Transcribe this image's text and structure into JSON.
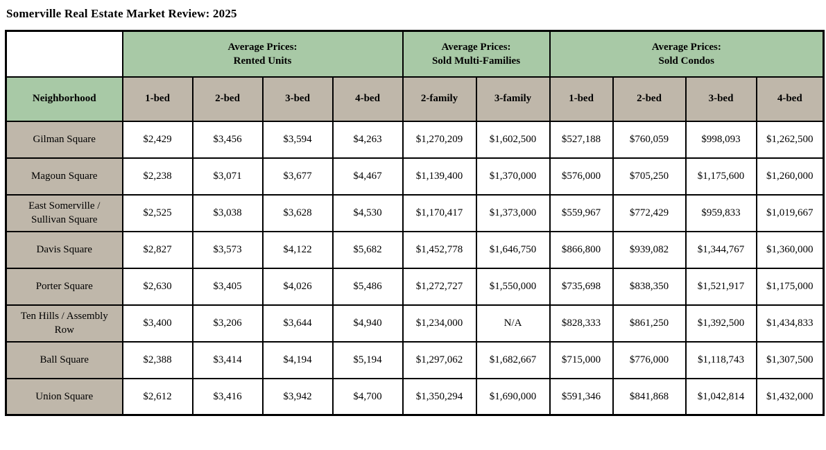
{
  "title": "Somerville Real Estate Market Review: 2025",
  "table": {
    "col_groups": [
      {
        "line1": "Average Prices:",
        "line2": "Rented Units",
        "span": 4
      },
      {
        "line1": "Average Prices:",
        "line2": "Sold Multi-Families",
        "span": 2
      },
      {
        "line1": "Average Prices:",
        "line2": "Sold Condos",
        "span": 4
      }
    ],
    "row_header": "Neighborhood",
    "sub_headers": [
      "1-bed",
      "2-bed",
      "3-bed",
      "4-bed",
      "2-family",
      "3-family",
      "1-bed",
      "2-bed",
      "3-bed",
      "4-bed"
    ],
    "rows": [
      {
        "neighborhood": "Gilman Square",
        "values": [
          "$2,429",
          "$3,456",
          "$3,594",
          "$4,263",
          "$1,270,209",
          "$1,602,500",
          "$527,188",
          "$760,059",
          "$998,093",
          "$1,262,500"
        ]
      },
      {
        "neighborhood": "Magoun Square",
        "values": [
          "$2,238",
          "$3,071",
          "$3,677",
          "$4,467",
          "$1,139,400",
          "$1,370,000",
          "$576,000",
          "$705,250",
          "$1,175,600",
          "$1,260,000"
        ]
      },
      {
        "neighborhood": "East Somerville / Sullivan Square",
        "values": [
          "$2,525",
          "$3,038",
          "$3,628",
          "$4,530",
          "$1,170,417",
          "$1,373,000",
          "$559,967",
          "$772,429",
          "$959,833",
          "$1,019,667"
        ]
      },
      {
        "neighborhood": "Davis Square",
        "values": [
          "$2,827",
          "$3,573",
          "$4,122",
          "$5,682",
          "$1,452,778",
          "$1,646,750",
          "$866,800",
          "$939,082",
          "$1,344,767",
          "$1,360,000"
        ]
      },
      {
        "neighborhood": "Porter Square",
        "values": [
          "$2,630",
          "$3,405",
          "$4,026",
          "$5,486",
          "$1,272,727",
          "$1,550,000",
          "$735,698",
          "$838,350",
          "$1,521,917",
          "$1,175,000"
        ]
      },
      {
        "neighborhood": "Ten Hills / Assembly Row",
        "values": [
          "$3,400",
          "$3,206",
          "$3,644",
          "$4,940",
          "$1,234,000",
          "N/A",
          "$828,333",
          "$861,250",
          "$1,392,500",
          "$1,434,833"
        ]
      },
      {
        "neighborhood": "Ball Square",
        "values": [
          "$2,388",
          "$3,414",
          "$4,194",
          "$5,194",
          "$1,297,062",
          "$1,682,667",
          "$715,000",
          "$776,000",
          "$1,118,743",
          "$1,307,500"
        ]
      },
      {
        "neighborhood": "Union Square",
        "values": [
          "$2,612",
          "$3,416",
          "$3,942",
          "$4,700",
          "$1,350,294",
          "$1,690,000",
          "$591,346",
          "$841,868",
          "$1,042,814",
          "$1,432,000"
        ]
      }
    ]
  },
  "colors": {
    "header_green": "#a8c9a6",
    "header_tan": "#bfb7aa",
    "border": "#000000"
  }
}
